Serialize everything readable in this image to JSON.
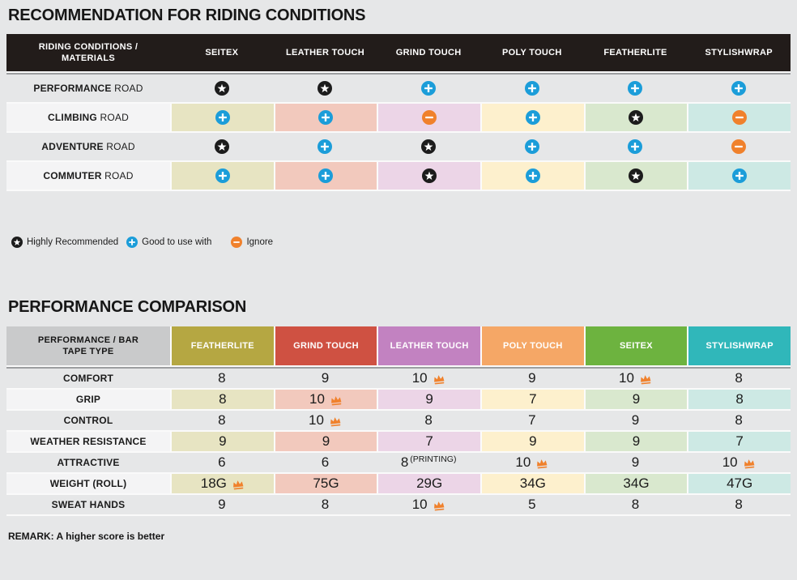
{
  "colors": {
    "page_bg": "#e6e7e8",
    "table1_header_bg": "#221c1a",
    "pastel_columns": [
      "#e7e4c2",
      "#f2c9bd",
      "#ecd5e7",
      "#fdf0cd",
      "#d9e8ce",
      "#cde9e4"
    ],
    "colored_row_label_bg": "#f4f4f5",
    "cell_gap": "#fbfbfb",
    "icon_star_bg": "#1c1c1c",
    "icon_plus_bg": "#1b9dd9",
    "icon_minus_bg": "#f0812c",
    "crown": "#f0812c",
    "table2_corner_bg": "#c9cacb"
  },
  "chart_data": [
    {
      "type": "table",
      "title": "RECOMMENDATION FOR RIDING CONDITIONS",
      "row_header": "RIDING CONDITIONS / MATERIALS",
      "columns": [
        "SEITEX",
        "LEATHER TOUCH",
        "GRIND TOUCH",
        "POLY TOUCH",
        "FEATHERLITE",
        "STYLISHWRAP"
      ],
      "icon_legend": [
        {
          "icon": "star",
          "label": "Highly Recommended"
        },
        {
          "icon": "plus",
          "label": "Good to use with"
        },
        {
          "icon": "minus",
          "label": "Ignore"
        }
      ],
      "rows": [
        {
          "label_bold": "PERFORMANCE",
          "label_rest": "ROAD",
          "colored": false,
          "cells": [
            "star",
            "star",
            "plus",
            "plus",
            "plus",
            "plus"
          ]
        },
        {
          "label_bold": "CLIMBING",
          "label_rest": "ROAD",
          "colored": true,
          "cells": [
            "plus",
            "plus",
            "minus",
            "plus",
            "star",
            "minus"
          ]
        },
        {
          "label_bold": "ADVENTURE",
          "label_rest": "ROAD",
          "colored": false,
          "cells": [
            "star",
            "plus",
            "star",
            "plus",
            "plus",
            "minus"
          ]
        },
        {
          "label_bold": "COMMUTER",
          "label_rest": "ROAD",
          "colored": true,
          "cells": [
            "plus",
            "plus",
            "star",
            "plus",
            "star",
            "plus"
          ]
        }
      ]
    },
    {
      "type": "table",
      "title": "PERFORMANCE COMPARISON",
      "row_header": "PERFORMANCE / BAR TAPE TYPE",
      "columns": [
        {
          "label": "FEATHERLITE",
          "color": "#b5a742"
        },
        {
          "label": "GRIND TOUCH",
          "color": "#cf5142"
        },
        {
          "label": "LEATHER TOUCH",
          "color": "#c282c1"
        },
        {
          "label": "POLY TOUCH",
          "color": "#f5a766"
        },
        {
          "label": "SEITEX",
          "color": "#6db33f"
        },
        {
          "label": "STYLISHWRAP",
          "color": "#30b7ba"
        }
      ],
      "rows": [
        {
          "label": "COMFORT",
          "colored": false,
          "values": [
            {
              "text": "8"
            },
            {
              "text": "9"
            },
            {
              "text": "10",
              "crown": true
            },
            {
              "text": "9"
            },
            {
              "text": "10",
              "crown": true
            },
            {
              "text": "8"
            }
          ]
        },
        {
          "label": "GRIP",
          "colored": true,
          "values": [
            {
              "text": "8"
            },
            {
              "text": "10",
              "crown": true
            },
            {
              "text": "9"
            },
            {
              "text": "7"
            },
            {
              "text": "9"
            },
            {
              "text": "8"
            }
          ]
        },
        {
          "label": "CONTROL",
          "colored": false,
          "values": [
            {
              "text": "8"
            },
            {
              "text": "10",
              "crown": true
            },
            {
              "text": "8"
            },
            {
              "text": "7"
            },
            {
              "text": "9"
            },
            {
              "text": "8"
            }
          ]
        },
        {
          "label": "WEATHER RESISTANCE",
          "colored": true,
          "values": [
            {
              "text": "9"
            },
            {
              "text": "9"
            },
            {
              "text": "7"
            },
            {
              "text": "9"
            },
            {
              "text": "9"
            },
            {
              "text": "7"
            }
          ]
        },
        {
          "label": "ATTRACTIVE",
          "colored": false,
          "values": [
            {
              "text": "6"
            },
            {
              "text": "6"
            },
            {
              "text": "8",
              "note": "(PRINTING)"
            },
            {
              "text": "10",
              "crown": true
            },
            {
              "text": "9"
            },
            {
              "text": "10",
              "crown": true
            }
          ]
        },
        {
          "label": "WEIGHT (ROLL)",
          "colored": true,
          "values": [
            {
              "text": "18G",
              "crown": true
            },
            {
              "text": "75G"
            },
            {
              "text": "29G"
            },
            {
              "text": "34G"
            },
            {
              "text": "34G"
            },
            {
              "text": "47G"
            }
          ]
        },
        {
          "label": "SWEAT HANDS",
          "colored": false,
          "values": [
            {
              "text": "9"
            },
            {
              "text": "8"
            },
            {
              "text": "10",
              "crown": true
            },
            {
              "text": "5"
            },
            {
              "text": "8"
            },
            {
              "text": "8"
            }
          ]
        }
      ],
      "remark": "REMARK: A higher score is better"
    }
  ]
}
